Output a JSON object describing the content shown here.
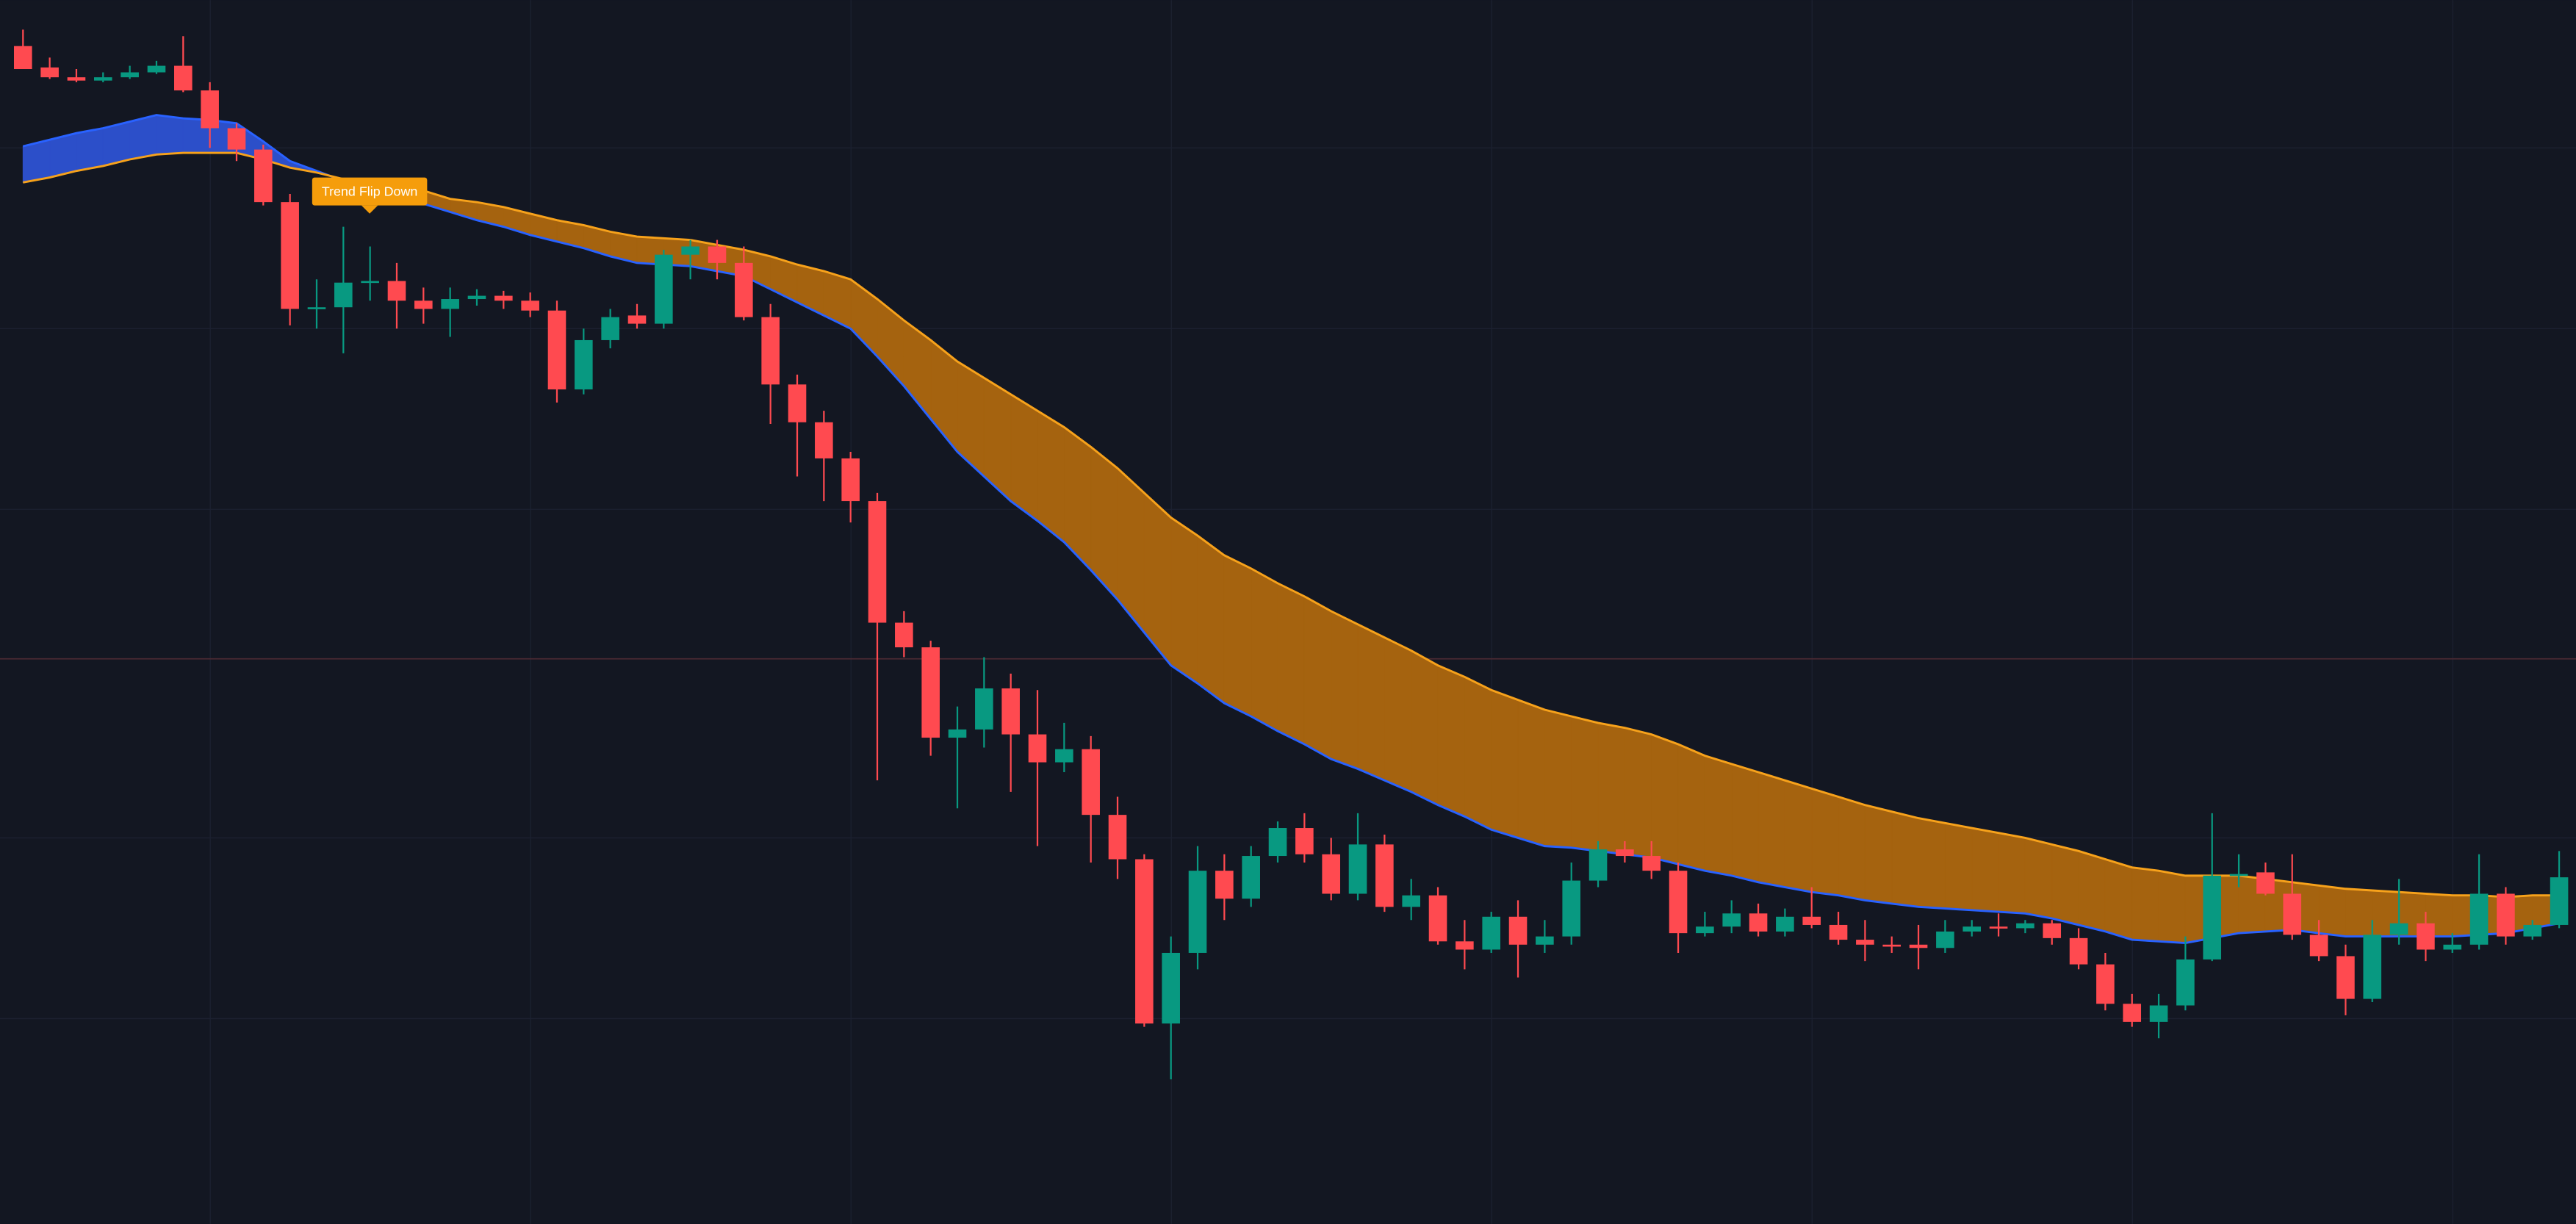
{
  "chart_data": {
    "type": "candlestick",
    "ylim": [
      255,
      1000
    ],
    "annotation": "Trend Flip Down",
    "candles": {
      "up_color": "#089981",
      "down_color": "#ff4a50",
      "open": [
        972,
        959,
        953,
        951,
        953,
        956,
        960,
        945,
        922,
        909,
        877,
        812,
        813,
        828,
        829,
        817,
        812,
        818,
        820,
        817,
        811,
        763,
        793,
        808,
        803,
        845,
        850,
        840,
        807,
        766,
        743,
        721,
        695,
        621,
        606,
        551,
        556,
        581,
        553,
        536,
        544,
        504,
        477,
        377,
        420,
        470,
        453,
        479,
        496,
        480,
        456,
        486,
        448,
        455,
        427,
        422,
        442,
        425,
        430,
        464,
        483,
        479,
        470,
        432,
        436,
        444,
        433,
        442,
        437,
        428,
        425,
        425,
        423,
        433,
        436,
        435,
        438,
        429,
        413,
        389,
        378,
        388,
        416,
        467,
        469,
        456,
        431,
        418,
        392,
        431,
        438,
        422,
        425,
        456,
        430,
        437
      ],
      "high": [
        982,
        965,
        958,
        956,
        960,
        963,
        978,
        950,
        925,
        912,
        882,
        830,
        862,
        850,
        840,
        825,
        825,
        824,
        823,
        822,
        817,
        800,
        812,
        815,
        848,
        854,
        854,
        850,
        815,
        772,
        750,
        725,
        700,
        628,
        610,
        570,
        600,
        590,
        580,
        560,
        552,
        515,
        480,
        430,
        485,
        480,
        485,
        500,
        505,
        490,
        505,
        492,
        465,
        460,
        440,
        445,
        452,
        440,
        475,
        488,
        488,
        488,
        475,
        445,
        452,
        450,
        447,
        460,
        445,
        440,
        430,
        437,
        440,
        440,
        444,
        440,
        440,
        435,
        420,
        395,
        395,
        430,
        505,
        480,
        475,
        480,
        440,
        425,
        440,
        465,
        445,
        432,
        480,
        460,
        440,
        482
      ],
      "low": [
        958,
        952,
        950,
        950,
        952,
        955,
        944,
        910,
        902,
        875,
        802,
        800,
        785,
        817,
        800,
        803,
        795,
        814,
        812,
        807,
        755,
        760,
        788,
        800,
        800,
        830,
        830,
        805,
        742,
        710,
        695,
        682,
        525,
        600,
        540,
        508,
        545,
        518,
        485,
        530,
        475,
        465,
        375,
        343,
        410,
        440,
        448,
        475,
        475,
        452,
        452,
        445,
        440,
        425,
        410,
        420,
        405,
        420,
        425,
        460,
        475,
        465,
        420,
        430,
        432,
        430,
        430,
        435,
        425,
        415,
        420,
        410,
        420,
        430,
        430,
        432,
        425,
        410,
        385,
        375,
        368,
        385,
        415,
        460,
        455,
        428,
        415,
        382,
        390,
        425,
        415,
        420,
        422,
        425,
        428,
        435
      ],
      "close": [
        958,
        953,
        951,
        953,
        956,
        960,
        945,
        922,
        909,
        877,
        812,
        813,
        828,
        829,
        817,
        812,
        818,
        820,
        817,
        811,
        763,
        793,
        807,
        803,
        845,
        850,
        840,
        807,
        766,
        743,
        721,
        695,
        621,
        606,
        551,
        556,
        581,
        553,
        536,
        544,
        504,
        477,
        377,
        420,
        470,
        453,
        479,
        496,
        480,
        456,
        486,
        448,
        455,
        427,
        422,
        442,
        425,
        430,
        464,
        483,
        479,
        470,
        432,
        436,
        444,
        433,
        442,
        437,
        428,
        425,
        424,
        423,
        433,
        436,
        435,
        438,
        429,
        413,
        389,
        378,
        388,
        416,
        467,
        468,
        456,
        431,
        418,
        392,
        431,
        438,
        422,
        425,
        456,
        430,
        437,
        466
      ]
    },
    "band_colors": [
      "#2c4fc9",
      "#a5630f"
    ],
    "series": [
      {
        "color": "#2962ff",
        "values": [
          911,
          915,
          919,
          922,
          926,
          930,
          928,
          927,
          925,
          914,
          902,
          896,
          890,
          885,
          880,
          876,
          871,
          866,
          862,
          857,
          853,
          849,
          844,
          840,
          839,
          838,
          835,
          832,
          824,
          816,
          808,
          800,
          783,
          765,
          745,
          725,
          710,
          695,
          683,
          670,
          653,
          635,
          615,
          595,
          584,
          572,
          564,
          555,
          547,
          538,
          532,
          525,
          518,
          510,
          503,
          495,
          490,
          485,
          484,
          482,
          480,
          478,
          474,
          470,
          467,
          463,
          460,
          457,
          455,
          452,
          450,
          448,
          447,
          446,
          445,
          444,
          441,
          437,
          433,
          428,
          427,
          426,
          429,
          432,
          433,
          434,
          432,
          430,
          430,
          430,
          430,
          430,
          431,
          432,
          435,
          438
        ]
      },
      {
        "color": "#f7a21b",
        "values": [
          889,
          892,
          896,
          899,
          903,
          906,
          907,
          907,
          907,
          903,
          898,
          895,
          891,
          888,
          886,
          884,
          879,
          877,
          874,
          870,
          866,
          863,
          859,
          856,
          855,
          854,
          851,
          848,
          844,
          839,
          835,
          830,
          818,
          805,
          793,
          780,
          770,
          760,
          750,
          740,
          728,
          715,
          700,
          685,
          674,
          662,
          654,
          645,
          637,
          628,
          620,
          612,
          604,
          595,
          588,
          580,
          574,
          568,
          564,
          560,
          557,
          553,
          547,
          540,
          535,
          530,
          525,
          520,
          515,
          510,
          506,
          502,
          499,
          496,
          493,
          490,
          486,
          482,
          477,
          472,
          470,
          467,
          467,
          467,
          465,
          463,
          461,
          459,
          458,
          457,
          456,
          455,
          455,
          454,
          455,
          455
        ]
      }
    ]
  }
}
